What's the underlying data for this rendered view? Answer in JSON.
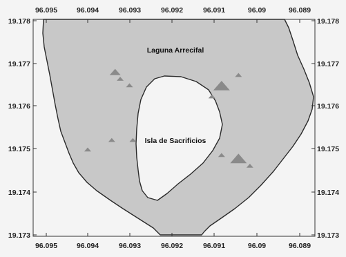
{
  "map": {
    "place_labels": {
      "lagoon": "Laguna Arrecifal",
      "island": "Isla de Sacrificios"
    },
    "colors": {
      "reef_fill": "#c8c8c8",
      "outline": "#2a2a2a",
      "background": "#f4f4f4",
      "marker": "#8a8a8a"
    },
    "axes": {
      "x_ticks": [
        "96.095",
        "96.094",
        "96.093",
        "96.092",
        "96.091",
        "96.09",
        "96.089"
      ],
      "y_ticks": [
        "19.178",
        "19.177",
        "19.176",
        "19.175",
        "19.174",
        "19.173"
      ],
      "lon_range": [
        96.0955,
        96.0886
      ],
      "lat_range": [
        19.1732,
        19.1781
      ]
    },
    "markers": [
      {
        "lon": 96.09337,
        "lat": 19.17678,
        "size": "medium"
      },
      {
        "lon": 96.09325,
        "lat": 19.17663,
        "size": "small"
      },
      {
        "lon": 96.09303,
        "lat": 19.17648,
        "size": "small"
      },
      {
        "lon": 96.09085,
        "lat": 19.17645,
        "size": "large"
      },
      {
        "lon": 96.09108,
        "lat": 19.17622,
        "size": "small"
      },
      {
        "lon": 96.09045,
        "lat": 19.17672,
        "size": "small"
      },
      {
        "lon": 96.09402,
        "lat": 19.17498,
        "size": "small"
      },
      {
        "lon": 96.09345,
        "lat": 19.1752,
        "size": "small"
      },
      {
        "lon": 96.09295,
        "lat": 19.1752,
        "size": "small"
      },
      {
        "lon": 96.09085,
        "lat": 19.17485,
        "size": "small"
      },
      {
        "lon": 96.09045,
        "lat": 19.17475,
        "size": "large"
      },
      {
        "lon": 96.09018,
        "lat": 19.1746,
        "size": "small"
      }
    ]
  }
}
